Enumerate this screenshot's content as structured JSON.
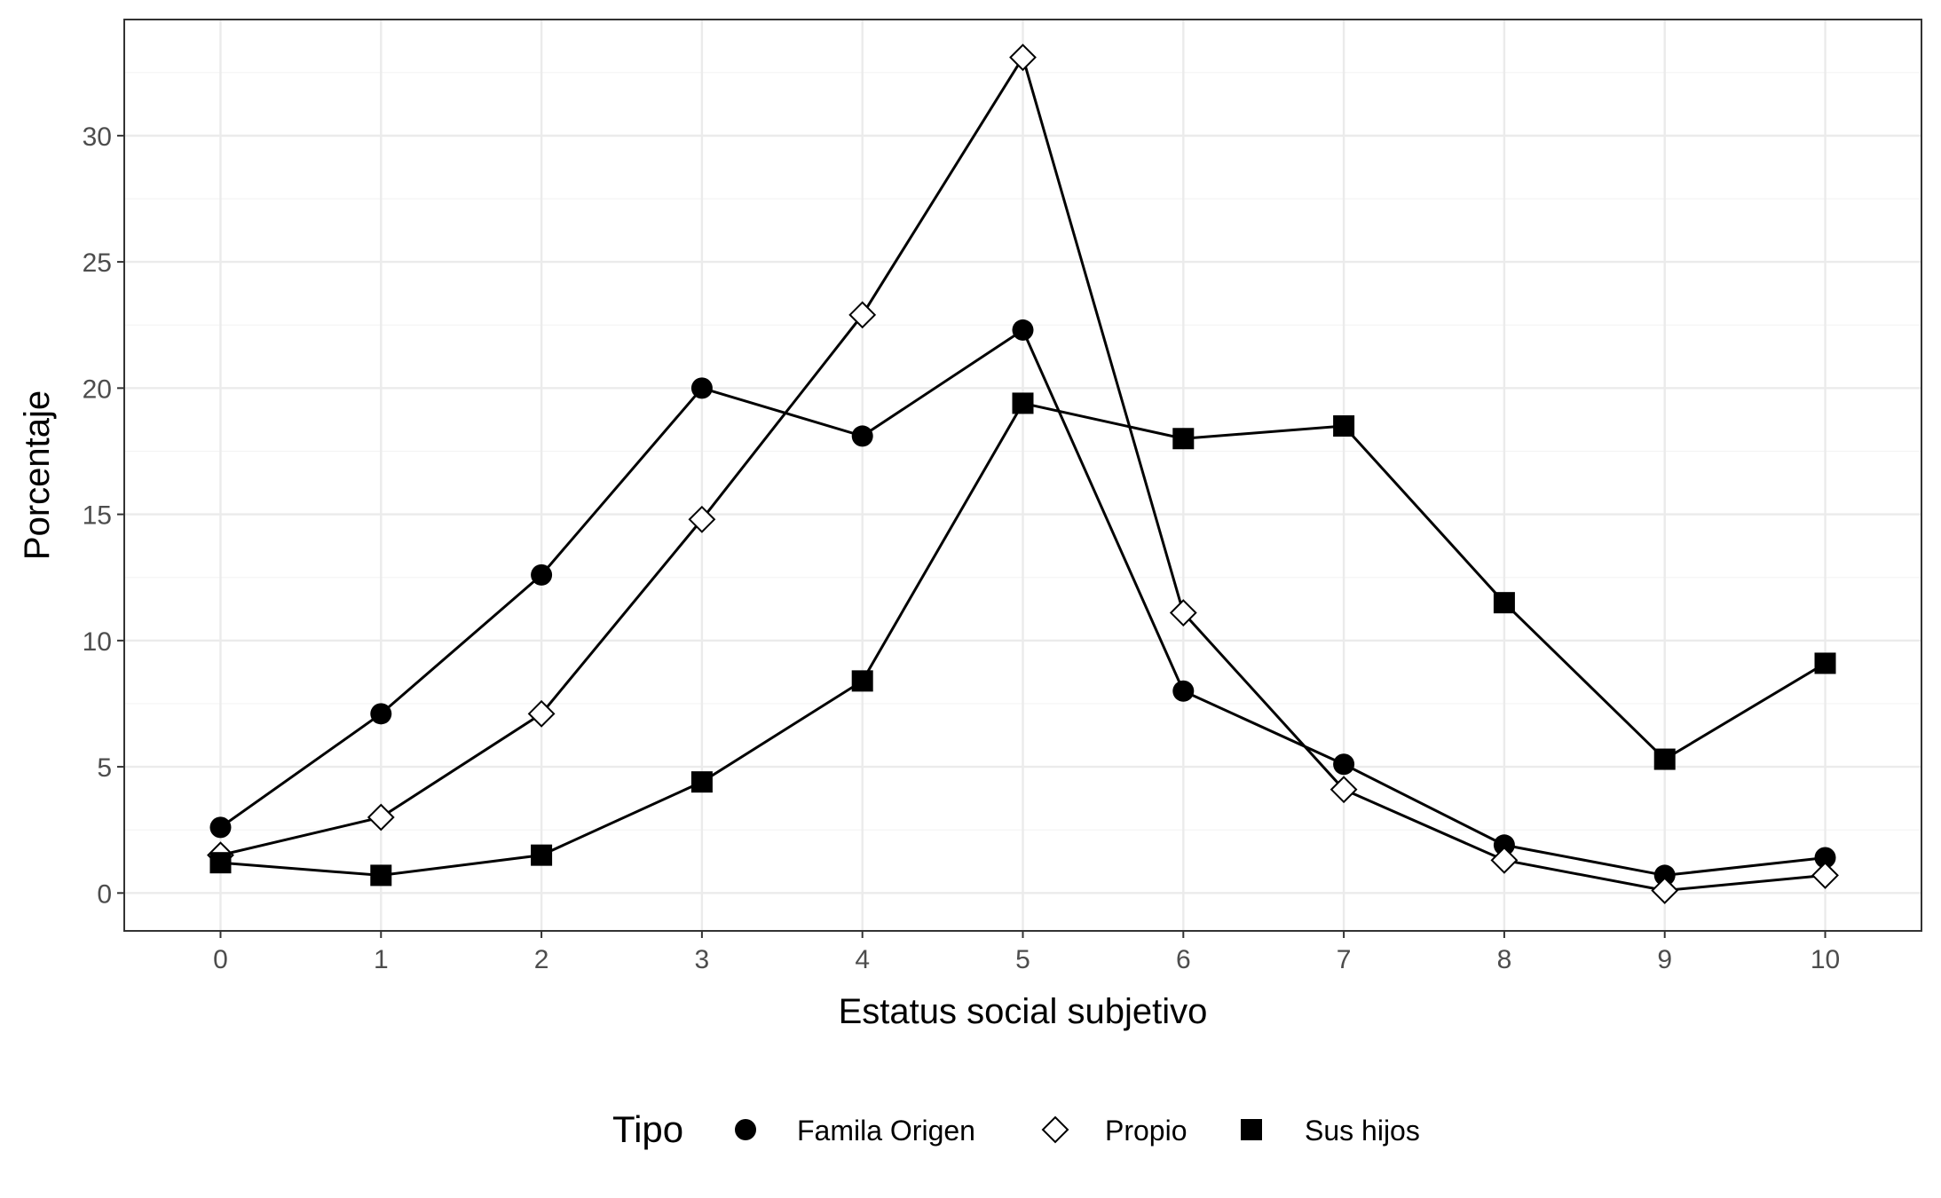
{
  "chart_data": {
    "type": "line",
    "title": "",
    "xlabel": "Estatus social subjetivo",
    "ylabel": "Porcentaje",
    "x": [
      0,
      1,
      2,
      3,
      4,
      5,
      6,
      7,
      8,
      9,
      10
    ],
    "x_tick_labels": [
      "0",
      "1",
      "2",
      "3",
      "4",
      "5",
      "6",
      "7",
      "8",
      "9",
      "10"
    ],
    "xlim": [
      -0.6,
      10.6
    ],
    "y_ticks": [
      0,
      5,
      10,
      15,
      20,
      25,
      30
    ],
    "y_tick_labels": [
      "0",
      "5",
      "10",
      "15",
      "20",
      "25",
      "30"
    ],
    "ylim": [
      -1.5,
      34.6
    ],
    "grid": true,
    "legend_position": "bottom",
    "legend_title": "Tipo",
    "series": [
      {
        "name": "Famila Origen",
        "marker": "circle",
        "values": [
          2.6,
          7.1,
          12.6,
          20.0,
          18.1,
          22.3,
          8.0,
          5.1,
          1.9,
          0.7,
          1.4
        ]
      },
      {
        "name": "Propio",
        "marker": "diamond",
        "values": [
          1.5,
          3.0,
          7.1,
          14.8,
          22.9,
          33.1,
          11.1,
          4.1,
          1.3,
          0.1,
          0.7
        ]
      },
      {
        "name": "Sus hijos",
        "marker": "square",
        "values": [
          1.2,
          0.7,
          1.5,
          4.4,
          8.4,
          19.4,
          18.0,
          18.5,
          11.5,
          5.3,
          9.1
        ]
      }
    ],
    "colors": {
      "line": "#000000",
      "grid_major": "#ebebeb",
      "grid_minor": "#f4f4f4",
      "panel_border": "#333333",
      "tick_text": "#4d4d4d"
    }
  }
}
